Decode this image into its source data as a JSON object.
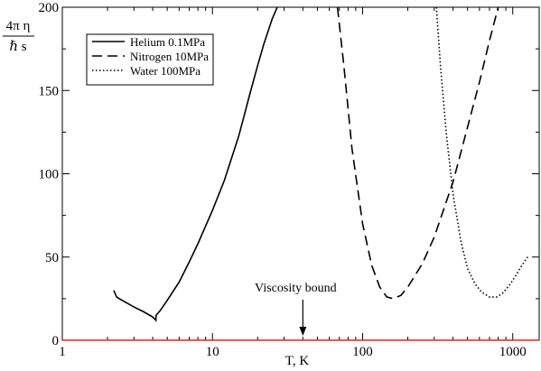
{
  "chart_data": {
    "type": "line",
    "xscale": "log",
    "xlim": [
      1,
      1500
    ],
    "ylim": [
      0,
      200
    ],
    "xlabel": "T, K",
    "ylabel": {
      "numerator": "4π η",
      "denominator": "ℏ s"
    },
    "xticks": [
      1,
      10,
      100,
      1000
    ],
    "xtick_labels": [
      "1",
      "10",
      "100",
      "1000"
    ],
    "yticks": [
      0,
      50,
      100,
      150,
      200
    ],
    "ytick_labels": [
      "0",
      "50",
      "100",
      "150",
      "200"
    ],
    "grid": false,
    "legend_position": "top-left",
    "series": [
      {
        "name": "Helium 0.1MPa",
        "style": "solid",
        "color": "#000000",
        "x": [
          2.2,
          2.3,
          2.5,
          3.0,
          3.5,
          4.0,
          4.2,
          4.21,
          4.5,
          5,
          6,
          7,
          8,
          10,
          12,
          15,
          18,
          20,
          22,
          25,
          27
        ],
        "y": [
          30,
          26,
          24,
          20,
          17,
          14,
          12,
          15,
          18,
          24,
          35,
          47,
          58,
          78,
          96,
          123,
          150,
          165,
          178,
          193,
          200
        ]
      },
      {
        "name": "Nitrogen 10MPa",
        "style": "dashed",
        "color": "#000000",
        "x": [
          68,
          75,
          85,
          100,
          115,
          130,
          145,
          160,
          180,
          200,
          250,
          300,
          400,
          500,
          600,
          700,
          800
        ],
        "y": [
          200,
          165,
          115,
          70,
          45,
          32,
          26,
          25,
          27,
          32,
          46,
          62,
          95,
          128,
          155,
          180,
          200
        ]
      },
      {
        "name": "Water 100MPa",
        "style": "dotted",
        "color": "#000000",
        "x": [
          310,
          330,
          360,
          400,
          450,
          500,
          560,
          620,
          700,
          780,
          850,
          950,
          1050,
          1150,
          1280
        ],
        "y": [
          200,
          165,
          125,
          88,
          60,
          43,
          34,
          29,
          26,
          26,
          28,
          33,
          39,
          45,
          51
        ]
      }
    ],
    "reference_line": {
      "y": 0.0796,
      "color": "#e8211d"
    },
    "annotation": {
      "text": "Viscosity bound",
      "x": 40
    }
  }
}
